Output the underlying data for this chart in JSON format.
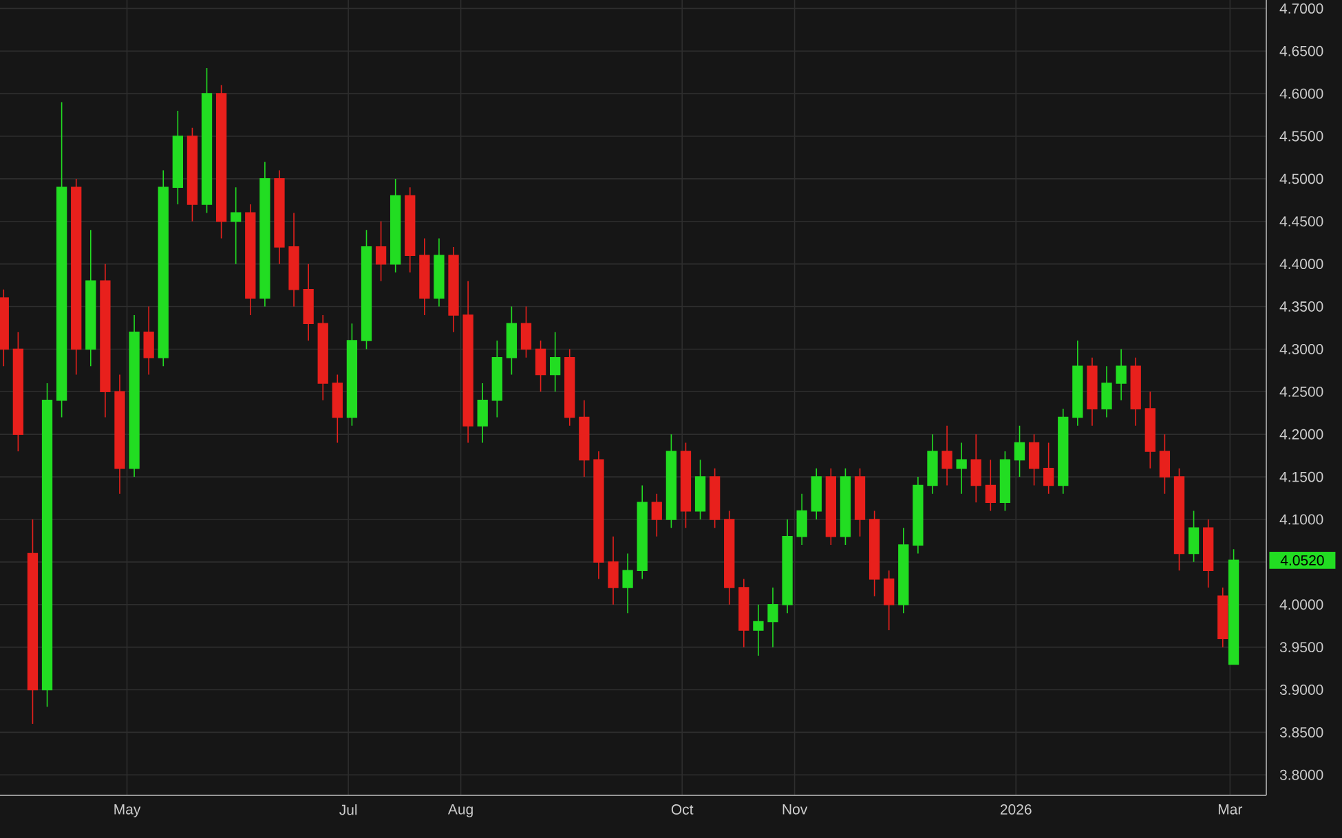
{
  "chart_data": {
    "type": "candlestick",
    "x": [
      "2025-03-28",
      "2025-04-01",
      "2025-04-05",
      "2025-04-09",
      "2025-04-13",
      "2025-04-17",
      "2025-04-21",
      "2025-04-25",
      "2025-04-29",
      "2025-05-03",
      "2025-05-07",
      "2025-05-11",
      "2025-05-15",
      "2025-05-19",
      "2025-05-23",
      "2025-05-27",
      "2025-05-31",
      "2025-06-04",
      "2025-06-08",
      "2025-06-12",
      "2025-06-16",
      "2025-06-20",
      "2025-06-24",
      "2025-06-28",
      "2025-07-02",
      "2025-07-06",
      "2025-07-10",
      "2025-07-14",
      "2025-07-18",
      "2025-07-22",
      "2025-07-26",
      "2025-07-30",
      "2025-08-03",
      "2025-08-07",
      "2025-08-11",
      "2025-08-15",
      "2025-08-19",
      "2025-08-23",
      "2025-08-27",
      "2025-08-31",
      "2025-09-04",
      "2025-09-08",
      "2025-09-12",
      "2025-09-16",
      "2025-09-20",
      "2025-09-24",
      "2025-09-28",
      "2025-10-02",
      "2025-10-06",
      "2025-10-10",
      "2025-10-14",
      "2025-10-18",
      "2025-10-22",
      "2025-10-26",
      "2025-10-30",
      "2025-11-03",
      "2025-11-07",
      "2025-11-11",
      "2025-11-15",
      "2025-11-19",
      "2025-11-23",
      "2025-11-27",
      "2025-12-01",
      "2025-12-05",
      "2025-12-09",
      "2025-12-13",
      "2025-12-17",
      "2025-12-21",
      "2025-12-25",
      "2025-12-29",
      "2026-01-02",
      "2026-01-06",
      "2026-01-10",
      "2026-01-14",
      "2026-01-18",
      "2026-01-22",
      "2026-01-26",
      "2026-01-30",
      "2026-02-03",
      "2026-02-07",
      "2026-02-11",
      "2026-02-15",
      "2026-02-19",
      "2026-02-23",
      "2026-02-27",
      "2026-03-02"
    ],
    "ohlc": [
      [
        4.36,
        4.37,
        4.28,
        4.3
      ],
      [
        4.3,
        4.32,
        4.18,
        4.2
      ],
      [
        4.06,
        4.1,
        3.86,
        3.9
      ],
      [
        3.9,
        4.26,
        3.88,
        4.24
      ],
      [
        4.24,
        4.59,
        4.22,
        4.49
      ],
      [
        4.49,
        4.5,
        4.27,
        4.3
      ],
      [
        4.3,
        4.44,
        4.28,
        4.38
      ],
      [
        4.38,
        4.4,
        4.22,
        4.25
      ],
      [
        4.25,
        4.27,
        4.13,
        4.16
      ],
      [
        4.16,
        4.34,
        4.15,
        4.32
      ],
      [
        4.32,
        4.35,
        4.27,
        4.29
      ],
      [
        4.29,
        4.51,
        4.28,
        4.49
      ],
      [
        4.49,
        4.58,
        4.47,
        4.55
      ],
      [
        4.55,
        4.56,
        4.45,
        4.47
      ],
      [
        4.47,
        4.63,
        4.46,
        4.6
      ],
      [
        4.6,
        4.61,
        4.43,
        4.45
      ],
      [
        4.45,
        4.49,
        4.4,
        4.46
      ],
      [
        4.46,
        4.47,
        4.34,
        4.36
      ],
      [
        4.36,
        4.52,
        4.35,
        4.5
      ],
      [
        4.5,
        4.51,
        4.4,
        4.42
      ],
      [
        4.42,
        4.46,
        4.35,
        4.37
      ],
      [
        4.37,
        4.4,
        4.31,
        4.33
      ],
      [
        4.33,
        4.34,
        4.24,
        4.26
      ],
      [
        4.26,
        4.27,
        4.19,
        4.22
      ],
      [
        4.22,
        4.33,
        4.21,
        4.31
      ],
      [
        4.31,
        4.44,
        4.3,
        4.42
      ],
      [
        4.42,
        4.45,
        4.38,
        4.4
      ],
      [
        4.4,
        4.5,
        4.39,
        4.48
      ],
      [
        4.48,
        4.49,
        4.39,
        4.41
      ],
      [
        4.41,
        4.43,
        4.34,
        4.36
      ],
      [
        4.36,
        4.43,
        4.35,
        4.41
      ],
      [
        4.41,
        4.42,
        4.32,
        4.34
      ],
      [
        4.34,
        4.38,
        4.19,
        4.21
      ],
      [
        4.21,
        4.26,
        4.19,
        4.24
      ],
      [
        4.24,
        4.31,
        4.22,
        4.29
      ],
      [
        4.29,
        4.35,
        4.27,
        4.33
      ],
      [
        4.33,
        4.35,
        4.29,
        4.3
      ],
      [
        4.3,
        4.31,
        4.25,
        4.27
      ],
      [
        4.27,
        4.32,
        4.25,
        4.29
      ],
      [
        4.29,
        4.3,
        4.21,
        4.22
      ],
      [
        4.22,
        4.24,
        4.15,
        4.17
      ],
      [
        4.17,
        4.18,
        4.03,
        4.05
      ],
      [
        4.05,
        4.08,
        4.0,
        4.02
      ],
      [
        4.02,
        4.06,
        3.99,
        4.04
      ],
      [
        4.04,
        4.14,
        4.03,
        4.12
      ],
      [
        4.12,
        4.13,
        4.08,
        4.1
      ],
      [
        4.1,
        4.2,
        4.09,
        4.18
      ],
      [
        4.18,
        4.19,
        4.09,
        4.11
      ],
      [
        4.11,
        4.17,
        4.1,
        4.15
      ],
      [
        4.15,
        4.16,
        4.09,
        4.1
      ],
      [
        4.1,
        4.11,
        4.0,
        4.02
      ],
      [
        4.02,
        4.03,
        3.95,
        3.97
      ],
      [
        3.97,
        4.0,
        3.94,
        3.98
      ],
      [
        3.98,
        4.02,
        3.95,
        4.0
      ],
      [
        4.0,
        4.1,
        3.99,
        4.08
      ],
      [
        4.08,
        4.13,
        4.07,
        4.11
      ],
      [
        4.11,
        4.16,
        4.1,
        4.15
      ],
      [
        4.15,
        4.16,
        4.07,
        4.08
      ],
      [
        4.08,
        4.16,
        4.07,
        4.15
      ],
      [
        4.15,
        4.16,
        4.08,
        4.1
      ],
      [
        4.1,
        4.11,
        4.01,
        4.03
      ],
      [
        4.03,
        4.04,
        3.97,
        4.0
      ],
      [
        4.0,
        4.09,
        3.99,
        4.07
      ],
      [
        4.07,
        4.15,
        4.06,
        4.14
      ],
      [
        4.14,
        4.2,
        4.13,
        4.18
      ],
      [
        4.18,
        4.21,
        4.14,
        4.16
      ],
      [
        4.16,
        4.19,
        4.13,
        4.17
      ],
      [
        4.17,
        4.2,
        4.12,
        4.14
      ],
      [
        4.14,
        4.17,
        4.11,
        4.12
      ],
      [
        4.12,
        4.18,
        4.11,
        4.17
      ],
      [
        4.17,
        4.21,
        4.15,
        4.19
      ],
      [
        4.19,
        4.2,
        4.14,
        4.16
      ],
      [
        4.16,
        4.19,
        4.13,
        4.14
      ],
      [
        4.14,
        4.23,
        4.13,
        4.22
      ],
      [
        4.22,
        4.31,
        4.21,
        4.28
      ],
      [
        4.28,
        4.29,
        4.21,
        4.23
      ],
      [
        4.23,
        4.28,
        4.22,
        4.26
      ],
      [
        4.26,
        4.3,
        4.24,
        4.28
      ],
      [
        4.28,
        4.29,
        4.21,
        4.23
      ],
      [
        4.23,
        4.25,
        4.16,
        4.18
      ],
      [
        4.18,
        4.2,
        4.13,
        4.15
      ],
      [
        4.15,
        4.16,
        4.04,
        4.06
      ],
      [
        4.06,
        4.11,
        4.05,
        4.09
      ],
      [
        4.09,
        4.1,
        4.02,
        4.04
      ],
      [
        4.01,
        4.02,
        3.95,
        3.96
      ],
      [
        3.93,
        4.065,
        3.93,
        4.052
      ]
    ],
    "colors": [
      "#e8201c",
      "#e8201c",
      "#e8201c",
      "#22dd22",
      "#22dd22",
      "#e8201c",
      "#22dd22",
      "#e8201c",
      "#e8201c",
      "#22dd22",
      "#e8201c",
      "#22dd22",
      "#22dd22",
      "#e8201c",
      "#22dd22",
      "#e8201c",
      "#22dd22",
      "#e8201c",
      "#22dd22",
      "#e8201c",
      "#e8201c",
      "#e8201c",
      "#e8201c",
      "#e8201c",
      "#22dd22",
      "#22dd22",
      "#e8201c",
      "#22dd22",
      "#e8201c",
      "#e8201c",
      "#22dd22",
      "#e8201c",
      "#e8201c",
      "#22dd22",
      "#22dd22",
      "#22dd22",
      "#e8201c",
      "#e8201c",
      "#22dd22",
      "#e8201c",
      "#e8201c",
      "#e8201c",
      "#e8201c",
      "#22dd22",
      "#22dd22",
      "#e8201c",
      "#22dd22",
      "#e8201c",
      "#22dd22",
      "#e8201c",
      "#e8201c",
      "#e8201c",
      "#22dd22",
      "#22dd22",
      "#22dd22",
      "#22dd22",
      "#22dd22",
      "#e8201c",
      "#22dd22",
      "#e8201c",
      "#e8201c",
      "#e8201c",
      "#22dd22",
      "#22dd22",
      "#22dd22",
      "#e8201c",
      "#22dd22",
      "#e8201c",
      "#e8201c",
      "#22dd22",
      "#22dd22",
      "#e8201c",
      "#e8201c",
      "#22dd22",
      "#22dd22",
      "#e8201c",
      "#22dd22",
      "#22dd22",
      "#e8201c",
      "#e8201c",
      "#e8201c",
      "#e8201c",
      "#22dd22",
      "#e8201c",
      "#e8201c",
      "#22dd22"
    ],
    "xlim": [
      "2025-03-27",
      "2026-03-11"
    ],
    "xticks": [
      {
        "value": "2025-05-01",
        "label": "May"
      },
      {
        "value": "2025-07-01",
        "label": "Jul"
      },
      {
        "value": "2025-08-01",
        "label": "Aug"
      },
      {
        "value": "2025-10-01",
        "label": "Oct"
      },
      {
        "value": "2025-11-01",
        "label": "Nov"
      },
      {
        "value": "2026-01-01",
        "label": "2026"
      },
      {
        "value": "2026-03-01",
        "label": "Mar"
      }
    ],
    "ylim": [
      3.776,
      4.71
    ],
    "yticks": [
      {
        "value": 3.8,
        "label": "3.8000"
      },
      {
        "value": 3.85,
        "label": "3.8500"
      },
      {
        "value": 3.9,
        "label": "3.9000"
      },
      {
        "value": 3.95,
        "label": "3.9500"
      },
      {
        "value": 4.0,
        "label": "4.0000"
      },
      {
        "value": 4.05,
        "label": null
      },
      {
        "value": 4.1,
        "label": "4.1000"
      },
      {
        "value": 4.15,
        "label": "4.1500"
      },
      {
        "value": 4.2,
        "label": "4.2000"
      },
      {
        "value": 4.25,
        "label": "4.2500"
      },
      {
        "value": 4.3,
        "label": "4.3000"
      },
      {
        "value": 4.35,
        "label": "4.3500"
      },
      {
        "value": 4.4,
        "label": "4.4000"
      },
      {
        "value": 4.45,
        "label": "4.4500"
      },
      {
        "value": 4.5,
        "label": "4.5000"
      },
      {
        "value": 4.55,
        "label": "4.5500"
      },
      {
        "value": 4.6,
        "label": "4.6000"
      },
      {
        "value": 4.65,
        "label": "4.6500"
      },
      {
        "value": 4.7,
        "label": "4.7000"
      }
    ],
    "grid": true,
    "annotations": [
      "4.0520"
    ]
  }
}
